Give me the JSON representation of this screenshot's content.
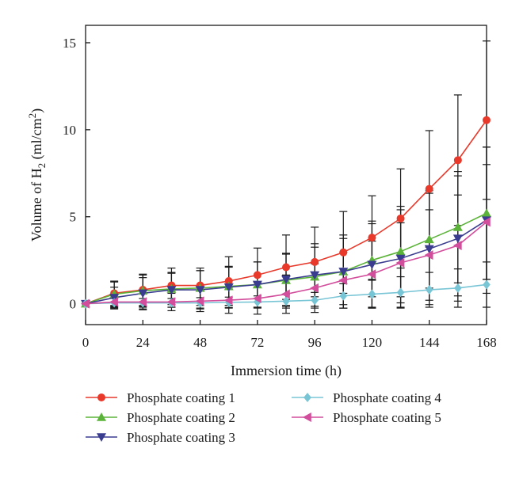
{
  "chart_data": {
    "type": "line",
    "title": "",
    "xlabel": "Immersion time (h)",
    "ylabel": {
      "prefix": "Volume of H",
      "sub": "2",
      "middle": " (ml/cm",
      "sup": "2",
      "suffix": ")"
    },
    "xlim": [
      0,
      168
    ],
    "ylim": [
      -1.2,
      16
    ],
    "xticks": [
      0,
      24,
      48,
      72,
      96,
      120,
      144,
      168
    ],
    "yticks": [
      0,
      5,
      10,
      15
    ],
    "grid": false,
    "legend_position": "bottom",
    "x": [
      0,
      12,
      24,
      36,
      48,
      60,
      72,
      84,
      96,
      108,
      120,
      132,
      144,
      156,
      168
    ],
    "series": [
      {
        "name": "Phosphate coating 1",
        "color": "#e8392b",
        "marker": "circle",
        "values": [
          0,
          0.6,
          0.8,
          1.05,
          1.05,
          1.3,
          1.65,
          2.1,
          2.4,
          2.95,
          3.8,
          4.9,
          6.6,
          8.25,
          10.55
        ],
        "errors": [
          0,
          0.7,
          0.9,
          1.0,
          1.0,
          1.4,
          1.55,
          1.85,
          2.0,
          2.35,
          2.4,
          2.85,
          3.35,
          3.75,
          4.55
        ]
      },
      {
        "name": "Phosphate coating 2",
        "color": "#5cb339",
        "marker": "triangle-up",
        "values": [
          0,
          0.55,
          0.75,
          0.85,
          0.9,
          1.0,
          1.1,
          1.35,
          1.55,
          1.85,
          2.5,
          3.0,
          3.7,
          4.4,
          5.2
        ],
        "errors": [
          0,
          0.7,
          0.9,
          0.9,
          1.0,
          1.1,
          1.3,
          1.5,
          1.7,
          1.9,
          2.1,
          2.6,
          2.8,
          3.2,
          3.8
        ]
      },
      {
        "name": "Phosphate coating 3",
        "color": "#3a3c8f",
        "marker": "triangle-down",
        "values": [
          0,
          0.35,
          0.6,
          0.8,
          0.8,
          0.95,
          1.1,
          1.4,
          1.65,
          1.85,
          2.25,
          2.6,
          3.15,
          3.75,
          4.8
        ],
        "errors": [
          0,
          0.6,
          0.9,
          1.0,
          1.1,
          1.2,
          1.3,
          1.5,
          1.8,
          2.1,
          2.5,
          2.8,
          3.2,
          3.6,
          4.2
        ]
      },
      {
        "name": "Phosphate coating 4",
        "color": "#78c5d6",
        "marker": "diamond",
        "values": [
          0,
          0.05,
          0.05,
          0.05,
          0.05,
          0.08,
          0.1,
          0.15,
          0.2,
          0.45,
          0.55,
          0.65,
          0.8,
          0.9,
          1.1
        ],
        "errors": [
          0,
          0.25,
          0.25,
          0.25,
          0.3,
          0.3,
          0.35,
          0.4,
          0.45,
          0.7,
          0.8,
          0.9,
          1.0,
          1.1,
          1.3
        ]
      },
      {
        "name": "Phosphate coating 5",
        "color": "#d24d9b",
        "marker": "triangle-left",
        "values": [
          0,
          0.1,
          0.1,
          0.1,
          0.15,
          0.2,
          0.3,
          0.55,
          0.9,
          1.35,
          1.7,
          2.35,
          2.8,
          3.35,
          4.7
        ],
        "errors": [
          0,
          0.4,
          0.45,
          0.5,
          0.6,
          0.75,
          0.9,
          1.1,
          1.4,
          1.6,
          1.9,
          2.3,
          2.6,
          2.9,
          3.3
        ]
      }
    ]
  }
}
